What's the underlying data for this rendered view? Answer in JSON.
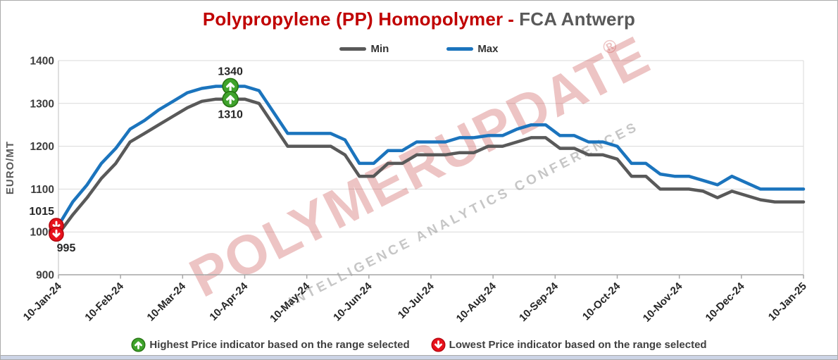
{
  "title": {
    "product": "Polypropylene (PP) Homopolymer",
    "separator": "-",
    "location": "FCA Antwerp"
  },
  "legend": [
    {
      "label": "Min"
    },
    {
      "label": "Max"
    }
  ],
  "watermark": {
    "line1": "POLYMERUPDATE",
    "reg": "®",
    "line2": "INTELLIGENCE   ANALYTICS   CONFERENCES"
  },
  "annotations": {
    "highest_max_label": "1340",
    "highest_min_label": "1310",
    "lowest_max_label": "1015",
    "lowest_min_label": "995"
  },
  "footer": [
    {
      "icon": "up-arrow-circle",
      "label": "Highest Price indicator based on the range selected"
    },
    {
      "icon": "down-arrow-circle",
      "label": "Lowest Price indicator based on the range selected"
    }
  ],
  "colors": {
    "title_red": "#c00000",
    "title_gray": "#595959",
    "max_blue": "#1b74bd",
    "min_gray": "#595959",
    "grid_gray": "#d9d9d9",
    "axis_gray": "#a6a6a6",
    "indicator_green": "#3fa32c",
    "indicator_green_border": "#267312",
    "indicator_red": "#e8121c",
    "indicator_red_border": "#b5060e",
    "watermark_pink": "rgba(201,77,77,0.33)",
    "watermark_gray": "rgba(120,120,120,0.42)"
  },
  "chart_data": {
    "type": "line",
    "title": "Polypropylene (PP) Homopolymer - FCA Antwerp",
    "ylabel": "EURO/MT",
    "ylim": [
      900,
      1400
    ],
    "y_ticks": [
      1400,
      1300,
      1200,
      1100,
      1000,
      900
    ],
    "x_tick_labels": [
      "10-Jan-24",
      "10-Feb-24",
      "10-Mar-24",
      "10-Apr-24",
      "10-May-24",
      "10-Jun-24",
      "10-Jul-24",
      "10-Aug-24",
      "10-Sep-24",
      "10-Oct-24",
      "10-Nov-24",
      "10-Dec-24",
      "10-Jan-25"
    ],
    "sampling": "weekly between first and last date label",
    "grid": "horizontal",
    "legend_position": "top",
    "series": [
      {
        "name": "Min",
        "color": "#595959",
        "values": [
          995,
          1040,
          1080,
          1125,
          1160,
          1210,
          1230,
          1250,
          1270,
          1290,
          1305,
          1310,
          1310,
          1310,
          1300,
          1250,
          1200,
          1200,
          1200,
          1200,
          1180,
          1130,
          1130,
          1160,
          1160,
          1180,
          1180,
          1180,
          1185,
          1185,
          1200,
          1200,
          1210,
          1220,
          1220,
          1195,
          1195,
          1180,
          1180,
          1170,
          1130,
          1130,
          1100,
          1100,
          1100,
          1095,
          1080,
          1095,
          1085,
          1075,
          1070,
          1070,
          1070
        ]
      },
      {
        "name": "Max",
        "color": "#1b74bd",
        "values": [
          1015,
          1070,
          1110,
          1160,
          1195,
          1240,
          1260,
          1285,
          1305,
          1325,
          1335,
          1340,
          1340,
          1340,
          1330,
          1280,
          1230,
          1230,
          1230,
          1230,
          1215,
          1160,
          1160,
          1190,
          1190,
          1210,
          1210,
          1210,
          1220,
          1220,
          1225,
          1225,
          1240,
          1250,
          1250,
          1225,
          1225,
          1210,
          1210,
          1200,
          1160,
          1160,
          1135,
          1130,
          1130,
          1120,
          1110,
          1130,
          1115,
          1100,
          1100,
          1100,
          1100
        ]
      }
    ],
    "indicators": {
      "highest": {
        "max_value": 1340,
        "min_value": 1310,
        "week_index": 12
      },
      "lowest": {
        "max_value": 1015,
        "min_value": 995,
        "week_index": 0
      }
    }
  }
}
